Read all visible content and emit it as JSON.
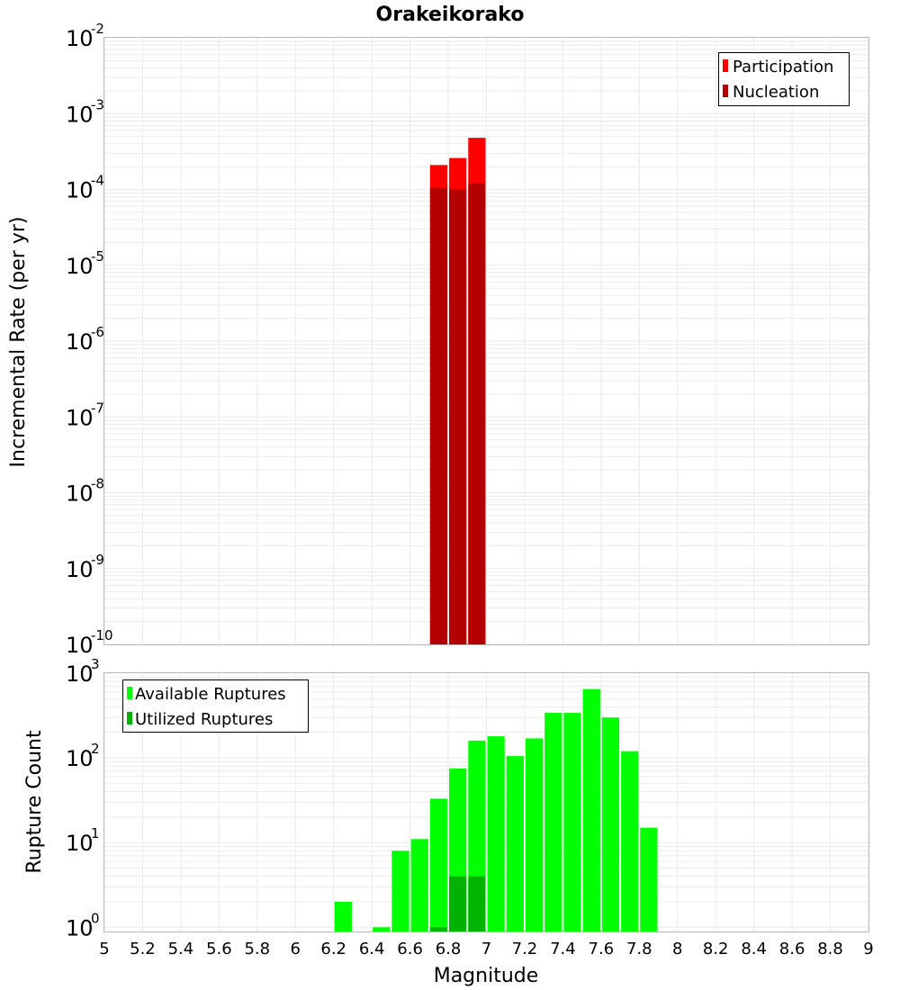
{
  "chart_data": [
    {
      "type": "bar",
      "title": "Orakeikorako",
      "xlabel": "",
      "ylabel": "Incremental Rate (per yr)",
      "xlim": [
        5,
        9
      ],
      "ylim_exponent": [
        -10,
        -2
      ],
      "yscale": "log",
      "grid": true,
      "legend_position": "top-right",
      "y_tick_exponents": [
        "-2",
        "-3",
        "-4",
        "-5",
        "-6",
        "-7",
        "-8",
        "-9",
        "-10"
      ],
      "series": [
        {
          "name": "Participation",
          "color": "#ff0000",
          "points": [
            {
              "x": 6.75,
              "y": 0.00021
            },
            {
              "x": 6.85,
              "y": 0.00026
            },
            {
              "x": 6.95,
              "y": 0.00048
            }
          ]
        },
        {
          "name": "Nucleation",
          "color": "#b30000",
          "points": [
            {
              "x": 6.75,
              "y": 0.000105
            },
            {
              "x": 6.85,
              "y": 0.0001
            },
            {
              "x": 6.95,
              "y": 0.00012
            }
          ]
        }
      ]
    },
    {
      "type": "bar",
      "title": "",
      "xlabel": "Magnitude",
      "ylabel": "Rupture Count",
      "xlim": [
        5,
        9
      ],
      "ylim_exponent": [
        -0.05,
        3
      ],
      "yscale": "log",
      "grid": true,
      "legend_position": "top-left",
      "y_tick_exponents": [
        "3",
        "2",
        "1",
        "0"
      ],
      "x_ticks": [
        "5",
        "5.2",
        "5.4",
        "5.6",
        "5.8",
        "6",
        "6.2",
        "6.4",
        "6.6",
        "6.8",
        "7",
        "7.2",
        "7.4",
        "7.6",
        "7.8",
        "8",
        "8.2",
        "8.4",
        "8.6",
        "8.8",
        "9"
      ],
      "series": [
        {
          "name": "Available Ruptures",
          "color": "#00ff00",
          "points": [
            {
              "x": 6.25,
              "y": 2
            },
            {
              "x": 6.45,
              "y": 1
            },
            {
              "x": 6.55,
              "y": 8
            },
            {
              "x": 6.65,
              "y": 11
            },
            {
              "x": 6.75,
              "y": 33
            },
            {
              "x": 6.85,
              "y": 75
            },
            {
              "x": 6.95,
              "y": 160
            },
            {
              "x": 7.05,
              "y": 180
            },
            {
              "x": 7.15,
              "y": 105
            },
            {
              "x": 7.25,
              "y": 170
            },
            {
              "x": 7.35,
              "y": 340
            },
            {
              "x": 7.45,
              "y": 340
            },
            {
              "x": 7.55,
              "y": 650
            },
            {
              "x": 7.65,
              "y": 300
            },
            {
              "x": 7.75,
              "y": 120
            },
            {
              "x": 7.85,
              "y": 15
            }
          ]
        },
        {
          "name": "Utilized Ruptures",
          "color": "#00b300",
          "points": [
            {
              "x": 6.75,
              "y": 1
            },
            {
              "x": 6.85,
              "y": 4
            },
            {
              "x": 6.95,
              "y": 4
            }
          ]
        }
      ]
    }
  ]
}
